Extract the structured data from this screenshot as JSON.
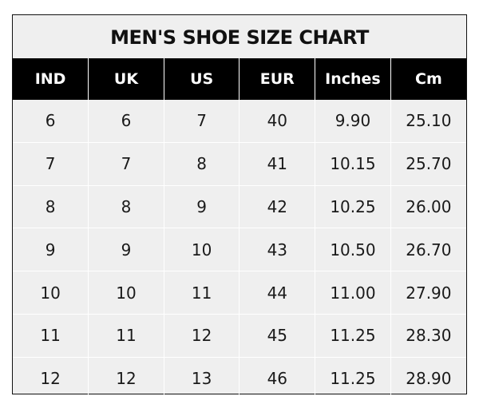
{
  "title": "MEN'S SHOE SIZE CHART",
  "columns": [
    "IND",
    "UK",
    "US",
    "EUR",
    "Inches",
    "Cm"
  ],
  "rows": [
    [
      "6",
      "6",
      "7",
      "40",
      "9.90",
      "25.10"
    ],
    [
      "7",
      "7",
      "8",
      "41",
      "10.15",
      "25.70"
    ],
    [
      "8",
      "8",
      "9",
      "42",
      "10.25",
      "26.00"
    ],
    [
      "9",
      "9",
      "10",
      "43",
      "10.50",
      "26.70"
    ],
    [
      "10",
      "10",
      "11",
      "44",
      "11.00",
      "27.90"
    ],
    [
      "11",
      "11",
      "12",
      "45",
      "11.25",
      "28.30"
    ],
    [
      "12",
      "12",
      "13",
      "46",
      "11.25",
      "28.90"
    ]
  ],
  "colors": {
    "header_bg": "#000000",
    "header_text": "#ffffff",
    "body_bg": "#efefef",
    "grid": "#ffffff"
  }
}
